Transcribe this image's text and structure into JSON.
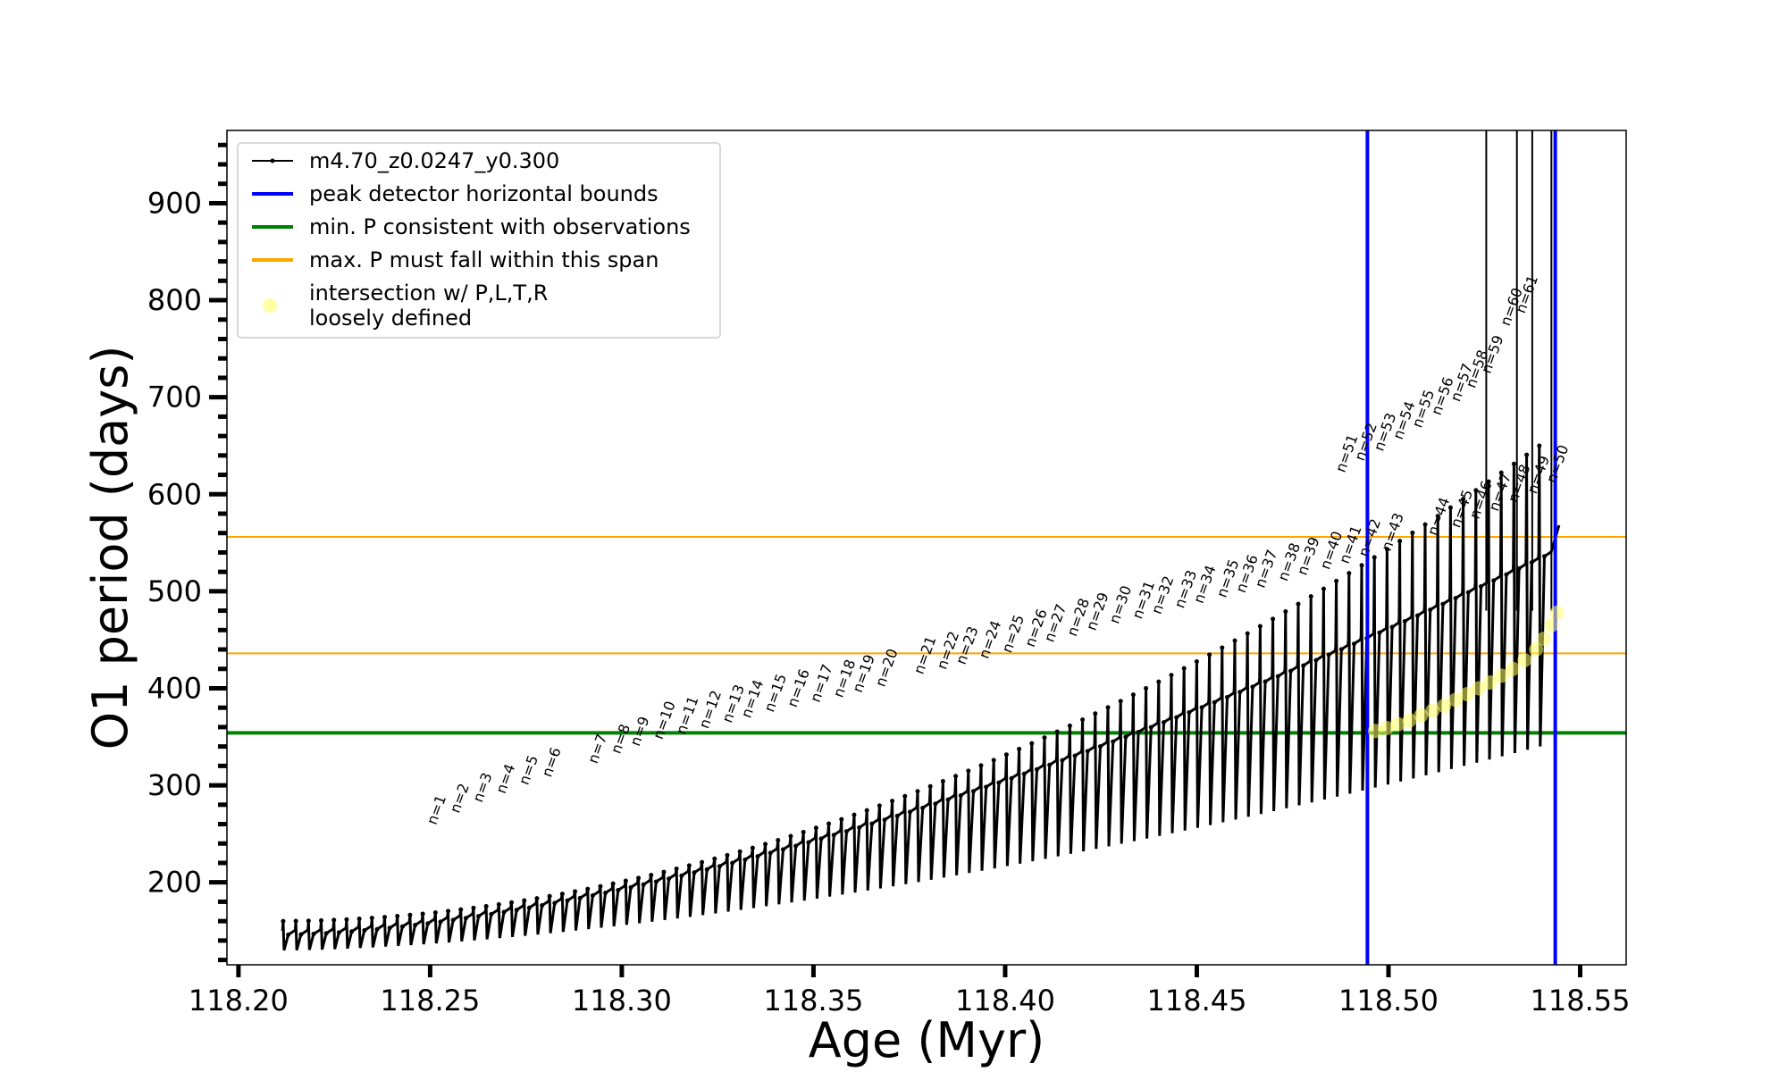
{
  "chart_data": {
    "type": "line",
    "xlabel": "Age (Myr)",
    "ylabel": "O1 period (days)",
    "xlim": [
      118.197,
      118.562
    ],
    "ylim": [
      115,
      975
    ],
    "xticks": [
      118.2,
      118.25,
      118.3,
      118.35,
      118.4,
      118.45,
      118.5,
      118.55
    ],
    "xtick_labels": [
      "118.20",
      "118.25",
      "118.30",
      "118.35",
      "118.40",
      "118.45",
      "118.50",
      "118.55"
    ],
    "yticks": [
      200,
      300,
      400,
      500,
      600,
      700,
      800,
      900
    ],
    "ytick_labels": [
      "200",
      "300",
      "400",
      "500",
      "600",
      "700",
      "800",
      "900"
    ],
    "yminor_step": 20,
    "legend_placement": "top-left",
    "legend": [
      {
        "label": "m4.70_z0.0247_y0.300",
        "style": "line-marker",
        "color": "#000000"
      },
      {
        "label": "peak detector horizontal bounds",
        "style": "line",
        "color": "#0000ff"
      },
      {
        "label": "min. P consistent with observations",
        "style": "line",
        "color": "#008000"
      },
      {
        "label": "max. P must fall within this span",
        "style": "line",
        "color": "#ffa500"
      },
      {
        "label": "intersection w/ P,L,T,R\nloosely defined",
        "style": "marker",
        "color": "#ffff66"
      }
    ],
    "series_name": "m4.70_z0.0247_y0.300",
    "pulse_model": {
      "n_pulses": 100,
      "age_start": 118.2115,
      "age_end": 118.5425,
      "baseline_start": 150,
      "baseline_end": 540,
      "min_start": 130,
      "min_end": 340,
      "peak_start": 160,
      "peak_end": 650
    },
    "peak_labels": [
      {
        "n": "n=1",
        "x": 118.2515,
        "y": 253
      },
      {
        "n": "n=2",
        "x": 118.2575,
        "y": 265
      },
      {
        "n": "n=3",
        "x": 118.2635,
        "y": 276
      },
      {
        "n": "n=4",
        "x": 118.2695,
        "y": 285
      },
      {
        "n": "n=5",
        "x": 118.2755,
        "y": 294
      },
      {
        "n": "n=6",
        "x": 118.2815,
        "y": 302
      },
      {
        "n": "n=7",
        "x": 118.2935,
        "y": 316
      },
      {
        "n": "n=8",
        "x": 118.2995,
        "y": 326
      },
      {
        "n": "n=9",
        "x": 118.3045,
        "y": 334
      },
      {
        "n": "n=10",
        "x": 118.3105,
        "y": 341
      },
      {
        "n": "n=11",
        "x": 118.3165,
        "y": 346
      },
      {
        "n": "n=12",
        "x": 118.3225,
        "y": 352
      },
      {
        "n": "n=13",
        "x": 118.3285,
        "y": 358
      },
      {
        "n": "n=14",
        "x": 118.3335,
        "y": 363
      },
      {
        "n": "n=15",
        "x": 118.3395,
        "y": 369
      },
      {
        "n": "n=16",
        "x": 118.3455,
        "y": 374
      },
      {
        "n": "n=17",
        "x": 118.3515,
        "y": 379
      },
      {
        "n": "n=18",
        "x": 118.3575,
        "y": 384
      },
      {
        "n": "n=19",
        "x": 118.3625,
        "y": 389
      },
      {
        "n": "n=20",
        "x": 118.3685,
        "y": 395
      },
      {
        "n": "n=21",
        "x": 118.3785,
        "y": 408
      },
      {
        "n": "n=22",
        "x": 118.3845,
        "y": 413
      },
      {
        "n": "n=23",
        "x": 118.3895,
        "y": 418
      },
      {
        "n": "n=24",
        "x": 118.3955,
        "y": 424
      },
      {
        "n": "n=25",
        "x": 118.4015,
        "y": 430
      },
      {
        "n": "n=26",
        "x": 118.4075,
        "y": 436
      },
      {
        "n": "n=27",
        "x": 118.4125,
        "y": 441
      },
      {
        "n": "n=28",
        "x": 118.4185,
        "y": 447
      },
      {
        "n": "n=29",
        "x": 118.4235,
        "y": 453
      },
      {
        "n": "n=30",
        "x": 118.4295,
        "y": 460
      },
      {
        "n": "n=31",
        "x": 118.4355,
        "y": 465
      },
      {
        "n": "n=32",
        "x": 118.4405,
        "y": 470
      },
      {
        "n": "n=33",
        "x": 118.4465,
        "y": 476
      },
      {
        "n": "n=34",
        "x": 118.4515,
        "y": 481
      },
      {
        "n": "n=35",
        "x": 118.4575,
        "y": 487
      },
      {
        "n": "n=36",
        "x": 118.4625,
        "y": 492
      },
      {
        "n": "n=37",
        "x": 118.4675,
        "y": 497
      },
      {
        "n": "n=38",
        "x": 118.4735,
        "y": 504
      },
      {
        "n": "n=39",
        "x": 118.4785,
        "y": 510
      },
      {
        "n": "n=40",
        "x": 118.4845,
        "y": 516
      },
      {
        "n": "n=41",
        "x": 118.4895,
        "y": 522
      },
      {
        "n": "n=42",
        "x": 118.4945,
        "y": 529
      },
      {
        "n": "n=43",
        "x": 118.5005,
        "y": 535
      },
      {
        "n": "n=44",
        "x": 118.5125,
        "y": 551
      },
      {
        "n": "n=45",
        "x": 118.5185,
        "y": 559
      },
      {
        "n": "n=46",
        "x": 118.5235,
        "y": 568
      },
      {
        "n": "n=47",
        "x": 118.5285,
        "y": 576
      },
      {
        "n": "n=48",
        "x": 118.5335,
        "y": 585
      },
      {
        "n": "n=49",
        "x": 118.5385,
        "y": 594
      },
      {
        "n": "n=50",
        "x": 118.5435,
        "y": 605
      },
      {
        "n": "n=51",
        "x": 118.4885,
        "y": 616
      },
      {
        "n": "n=52",
        "x": 118.4935,
        "y": 628
      },
      {
        "n": "n=53",
        "x": 118.4985,
        "y": 638
      },
      {
        "n": "n=54",
        "x": 118.5035,
        "y": 650
      },
      {
        "n": "n=55",
        "x": 118.5085,
        "y": 662
      },
      {
        "n": "n=56",
        "x": 118.5135,
        "y": 675
      },
      {
        "n": "n=57",
        "x": 118.5185,
        "y": 689
      },
      {
        "n": "n=58",
        "x": 118.5225,
        "y": 703
      },
      {
        "n": "n=59",
        "x": 118.5265,
        "y": 718
      },
      {
        "n": "n=60",
        "x": 118.5315,
        "y": 767
      },
      {
        "n": "n=61",
        "x": 118.5355,
        "y": 780
      }
    ],
    "horizontal_lines": [
      {
        "name": "min. P consistent with observations",
        "y": 354,
        "color": "#008000",
        "width": 4
      },
      {
        "name": "max. P must fall within this span",
        "y": 436,
        "color": "#ffa500",
        "width": 2
      },
      {
        "name": "max. P must fall within this span",
        "y": 556,
        "color": "#ffa500",
        "width": 2
      }
    ],
    "vertical_lines": [
      {
        "name": "peak detector horizontal bounds",
        "x": 118.4945,
        "color": "#0000ff",
        "width": 4
      },
      {
        "name": "peak detector horizontal bounds",
        "x": 118.5435,
        "color": "#0000ff",
        "width": 4
      }
    ],
    "intersection_points": [
      {
        "x": 118.4965,
        "y": 356
      },
      {
        "x": 118.4995,
        "y": 359
      },
      {
        "x": 118.5025,
        "y": 363
      },
      {
        "x": 118.5055,
        "y": 367
      },
      {
        "x": 118.5085,
        "y": 372
      },
      {
        "x": 118.5115,
        "y": 377
      },
      {
        "x": 118.5145,
        "y": 382
      },
      {
        "x": 118.5175,
        "y": 388
      },
      {
        "x": 118.5205,
        "y": 394
      },
      {
        "x": 118.5235,
        "y": 400
      },
      {
        "x": 118.5265,
        "y": 406
      },
      {
        "x": 118.5295,
        "y": 413
      },
      {
        "x": 118.5325,
        "y": 420
      },
      {
        "x": 118.5355,
        "y": 429
      },
      {
        "x": 118.5385,
        "y": 440
      },
      {
        "x": 118.5405,
        "y": 451
      },
      {
        "x": 118.5425,
        "y": 465
      },
      {
        "x": 118.544,
        "y": 478
      }
    ],
    "tall_spikes": [
      118.5255,
      118.5335,
      118.5375,
      118.5425
    ],
    "tail_end": {
      "x": 118.5445,
      "y": 568
    }
  }
}
